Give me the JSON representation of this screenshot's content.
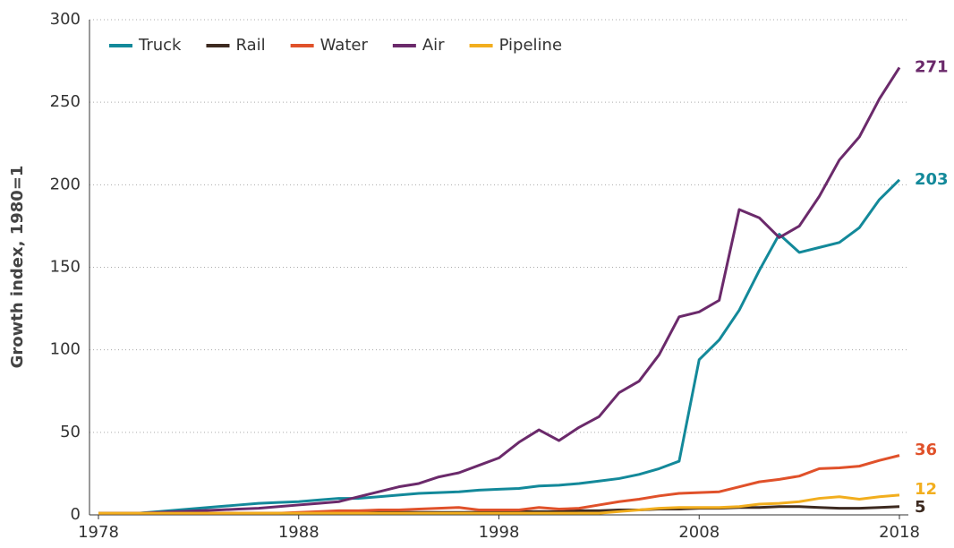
{
  "chart_data": {
    "type": "line",
    "y_label": "Growth index, 1980=1",
    "x": [
      1978,
      1979,
      1980,
      1981,
      1982,
      1983,
      1984,
      1985,
      1986,
      1987,
      1988,
      1989,
      1990,
      1991,
      1992,
      1993,
      1994,
      1995,
      1996,
      1997,
      1998,
      1999,
      2000,
      2001,
      2002,
      2003,
      2004,
      2005,
      2006,
      2007,
      2008,
      2009,
      2010,
      2011,
      2012,
      2013,
      2014,
      2015,
      2016,
      2017,
      2018
    ],
    "series": [
      {
        "name": "Truck",
        "color": "#13899a",
        "values": [
          1,
          1,
          1,
          2,
          3,
          4,
          5,
          6,
          7,
          7.5,
          8,
          9,
          10,
          10,
          11,
          12,
          13,
          13.5,
          14,
          15,
          15.5,
          16,
          17.5,
          18,
          19,
          20.5,
          22,
          24.5,
          28,
          32.5,
          94,
          106,
          124,
          148,
          170,
          159,
          162,
          165,
          174,
          191,
          203
        ]
      },
      {
        "name": "Rail",
        "color": "#3d2a20",
        "values": [
          1,
          1,
          1,
          1,
          1,
          1,
          1,
          1,
          1,
          1,
          1,
          1,
          1,
          1.5,
          1.5,
          1.5,
          1.5,
          1.5,
          1.5,
          1.5,
          2,
          2,
          2,
          2,
          2.5,
          2.5,
          3,
          3,
          3.5,
          3.5,
          4,
          4,
          4.5,
          4.5,
          5,
          5,
          4.5,
          4,
          4,
          4.5,
          5
        ]
      },
      {
        "name": "Water",
        "color": "#e0512a",
        "values": [
          1,
          1,
          1,
          1,
          1,
          1,
          1,
          1,
          1,
          1,
          1.5,
          2,
          2.5,
          2.5,
          3,
          3,
          3.5,
          4,
          4.5,
          3,
          3,
          3,
          4.5,
          3.5,
          4,
          6,
          8,
          9.5,
          11.5,
          13,
          13.5,
          14,
          17,
          20,
          21.5,
          23.5,
          28,
          28.5,
          29.5,
          33,
          36
        ]
      },
      {
        "name": "Air",
        "color": "#6b2a6b",
        "values": [
          1,
          1,
          1,
          1.5,
          2,
          2.5,
          3,
          3.5,
          4,
          5,
          6,
          7,
          8,
          11,
          14,
          17,
          19,
          23,
          25.5,
          30,
          34.5,
          44,
          51.5,
          45,
          53,
          59.5,
          74,
          81,
          97,
          120,
          123,
          130,
          185,
          180,
          168,
          175,
          193,
          215,
          229,
          252,
          271
        ]
      },
      {
        "name": "Pipeline",
        "color": "#f2ae1e",
        "values": [
          1,
          1,
          1,
          1,
          1,
          1,
          1,
          1,
          1,
          1,
          1,
          1,
          1,
          1,
          1,
          1,
          1,
          1,
          1,
          1,
          1,
          1,
          1,
          1,
          1,
          1,
          2,
          3,
          4,
          4.5,
          4.5,
          4.5,
          5,
          6.5,
          7,
          8,
          10,
          11,
          9.5,
          11,
          12
        ]
      }
    ],
    "xlim": [
      1978,
      2018
    ],
    "xticks": [
      1978,
      1988,
      1998,
      2008,
      2018
    ],
    "ylim": [
      0,
      300
    ],
    "yticks": [
      0,
      50,
      100,
      150,
      200,
      250,
      300
    ],
    "grid": true,
    "legend": "top-left"
  }
}
